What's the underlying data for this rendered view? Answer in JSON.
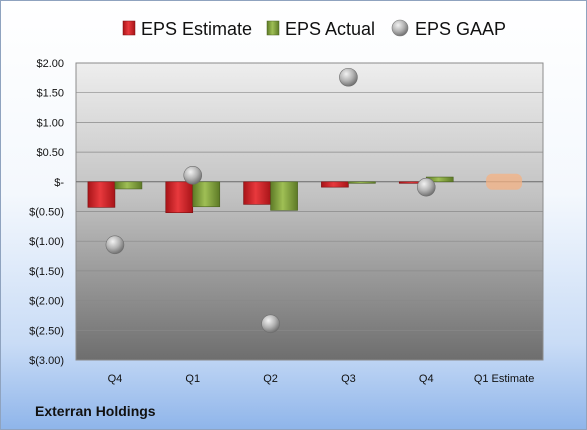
{
  "chart_data": {
    "type": "bar",
    "categories": [
      "Q4",
      "Q1",
      "Q2",
      "Q3",
      "Q4",
      "Q1 Estimate"
    ],
    "ylim": [
      -3.0,
      2.0
    ],
    "yticks": [
      2.0,
      1.5,
      1.0,
      0.5,
      0.0,
      -0.5,
      -1.0,
      -1.5,
      -2.0,
      -2.5,
      -3.0
    ],
    "ytick_labels": [
      "$2.00",
      "$1.50",
      "$1.00",
      "$0.50",
      "$-",
      "$(0.50)",
      "$(1.00)",
      "$(1.50)",
      "$(2.00)",
      "$(2.50)",
      "$(3.00)"
    ],
    "grid": true,
    "legend_position": "top",
    "series": [
      {
        "name": "EPS Estimate",
        "kind": "bar",
        "color": "#d0262a",
        "values": [
          -0.43,
          -0.52,
          -0.38,
          -0.09,
          -0.02,
          null
        ]
      },
      {
        "name": "EPS Actual",
        "kind": "bar",
        "color": "#7c9c3a",
        "values": [
          -0.12,
          -0.42,
          -0.48,
          -0.02,
          0.08,
          null
        ]
      },
      {
        "name": "EPS GAAP",
        "kind": "marker",
        "color": "#a6a6a6",
        "values": [
          -1.06,
          0.11,
          -2.39,
          1.76,
          -0.09,
          null
        ]
      }
    ],
    "estimate_marker": {
      "category": "Q1 Estimate",
      "value": 0.0,
      "color": "#f4b183"
    }
  },
  "company": "Exterran Holdings"
}
